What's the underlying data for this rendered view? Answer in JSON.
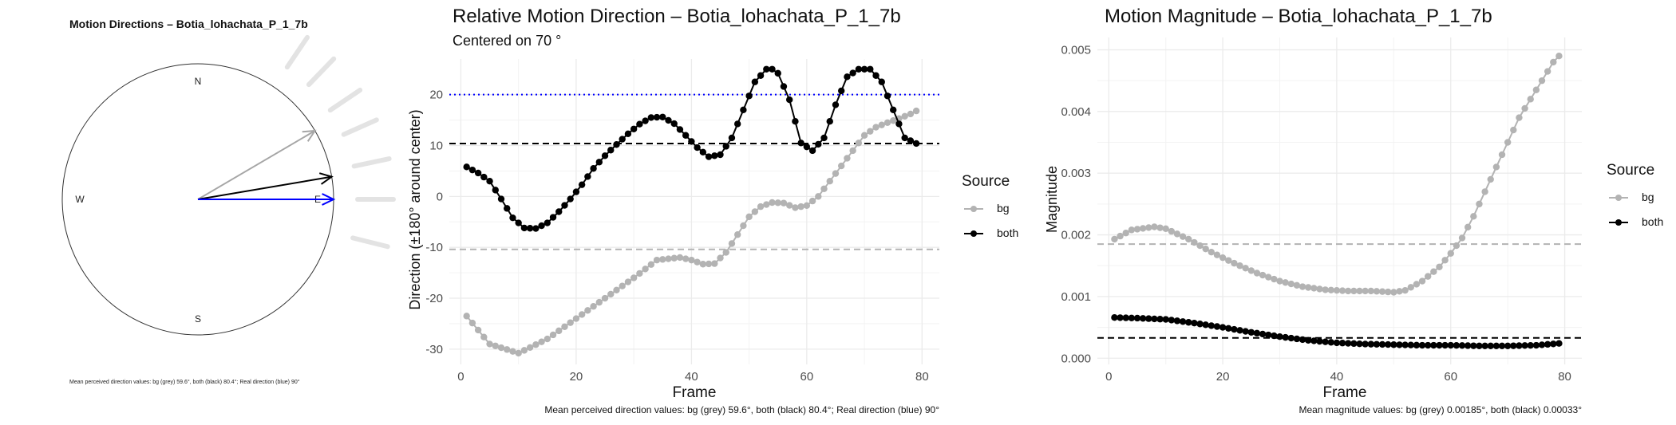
{
  "compass": {
    "title": "Motion Directions – Botia_lohachata_P_1_7b",
    "north": "N",
    "south": "S",
    "west": "W",
    "east": "E",
    "caption": "Mean perceived direction values: bg (grey) 59.6°, both (black) 80.4°; Real direction (blue) 90°",
    "arrows": [
      {
        "name": "bg",
        "angle_deg": 59.6,
        "color": "#a6a6a6"
      },
      {
        "name": "both",
        "angle_deg": 80.4,
        "color": "#000000"
      },
      {
        "name": "real",
        "angle_deg": 90,
        "color": "#0000ff"
      }
    ],
    "rays_deg": [
      34,
      44,
      56,
      66,
      78,
      90,
      104
    ]
  },
  "relative": {
    "title": "Relative Motion Direction – Botia_lohachata_P_1_7b",
    "subtitle": "Centered on  70 °",
    "xlabel": "Frame",
    "ylabel": "Direction (±180° around center)",
    "caption": "Mean perceived direction values: bg (grey) 59.6°, both (black) 80.4°; Real direction (blue) 90°",
    "legend_title": "Source",
    "legend_items": [
      "bg",
      "both"
    ]
  },
  "magnitude": {
    "title": "Motion Magnitude – Botia_lohachata_P_1_7b",
    "xlabel": "Frame",
    "ylabel": "Magnitude",
    "caption": "Mean magnitude values: bg (grey) 0.00185°, both (black) 0.00033°",
    "legend_title": "Source",
    "legend_items": [
      "bg",
      "both"
    ]
  },
  "colors": {
    "bg": "#b3b3b3",
    "both": "#000000",
    "real": "#0000ff",
    "grid": "#ebebeb"
  },
  "chart_data": [
    {
      "type": "line",
      "title": "Relative Motion Direction – Botia_lohachata_P_1_7b",
      "xlabel": "Frame",
      "ylabel": "Direction (±180° around center)",
      "xlim": [
        -2,
        83
      ],
      "ylim": [
        -33,
        27
      ],
      "xticks": [
        0,
        20,
        40,
        60,
        80
      ],
      "yticks": [
        -30,
        -20,
        -10,
        0,
        10,
        20
      ],
      "grid": true,
      "legend": "right",
      "hlines": [
        {
          "y": 20,
          "color": "#0000ff",
          "style": "dotted"
        },
        {
          "y": 10.4,
          "color": "#000000",
          "style": "dashed"
        },
        {
          "y": -10.4,
          "color": "#b3b3b3",
          "style": "dashed"
        }
      ],
      "series": [
        {
          "name": "bg",
          "x": [
            1,
            5,
            10,
            15,
            20,
            25,
            30,
            34,
            38,
            40,
            42,
            44,
            46,
            48,
            50,
            52,
            54,
            56,
            58,
            60,
            62,
            64,
            66,
            68,
            70,
            72,
            74,
            76,
            78,
            79
          ],
          "y": [
            -23.5,
            -29,
            -30.8,
            -28,
            -24,
            -20,
            -16,
            -12.5,
            -12,
            -12.5,
            -13.3,
            -13.2,
            -11,
            -7.5,
            -4,
            -2,
            -1.2,
            -1.3,
            -2.2,
            -1.8,
            0,
            3,
            6,
            9,
            12,
            13.6,
            14.5,
            15.3,
            16.2,
            16.8
          ]
        },
        {
          "name": "both",
          "x": [
            1,
            3,
            5,
            7,
            9,
            11,
            13,
            15,
            17,
            19,
            21,
            23,
            25,
            27,
            29,
            31,
            33,
            35,
            37,
            39,
            41,
            43,
            45,
            47,
            49,
            51,
            53,
            54,
            55,
            57,
            59,
            61,
            63,
            65,
            67,
            69,
            71,
            73,
            75,
            77,
            79
          ],
          "y": [
            5.8,
            4.6,
            3,
            -0.5,
            -4.2,
            -6.2,
            -6.3,
            -5.2,
            -3,
            -0.5,
            2.3,
            5.5,
            8,
            10.2,
            12.3,
            14.2,
            15.5,
            15.6,
            14.3,
            12,
            9.6,
            7.8,
            8.2,
            11.5,
            17,
            22.5,
            25,
            25,
            24.2,
            19,
            10.5,
            9,
            11.5,
            18,
            23.5,
            25,
            25,
            22.5,
            17,
            11.5,
            10.4
          ]
        }
      ]
    },
    {
      "type": "line",
      "title": "Motion Magnitude – Botia_lohachata_P_1_7b",
      "xlabel": "Frame",
      "ylabel": "Magnitude",
      "xlim": [
        -2,
        83
      ],
      "ylim": [
        -0.0001,
        0.0052
      ],
      "xticks": [
        0,
        20,
        40,
        60,
        80
      ],
      "yticks": [
        0.0,
        0.001,
        0.002,
        0.003,
        0.004,
        0.005
      ],
      "grid": true,
      "legend": "right",
      "hlines": [
        {
          "y": 0.00185,
          "color": "#b3b3b3",
          "style": "dashed"
        },
        {
          "y": 0.00033,
          "color": "#000000",
          "style": "dashed"
        }
      ],
      "series": [
        {
          "name": "bg",
          "x": [
            1,
            4,
            8,
            10,
            14,
            18,
            22,
            26,
            30,
            34,
            38,
            42,
            46,
            50,
            52,
            55,
            58,
            60,
            62,
            64,
            66,
            68,
            70,
            72,
            74,
            76,
            78,
            79
          ],
          "y": [
            0.00193,
            0.00208,
            0.00213,
            0.0021,
            0.00193,
            0.00172,
            0.00154,
            0.00138,
            0.00125,
            0.00116,
            0.00111,
            0.00109,
            0.00109,
            0.00107,
            0.0011,
            0.00125,
            0.00148,
            0.0017,
            0.00195,
            0.0023,
            0.0027,
            0.0031,
            0.0035,
            0.0039,
            0.0042,
            0.0045,
            0.0048,
            0.0049
          ]
        },
        {
          "name": "both",
          "x": [
            1,
            5,
            10,
            15,
            20,
            25,
            30,
            35,
            40,
            45,
            50,
            55,
            60,
            65,
            70,
            75,
            79
          ],
          "y": [
            0.00066,
            0.00065,
            0.00063,
            0.00057,
            0.0005,
            0.00042,
            0.00035,
            0.00029,
            0.00025,
            0.00023,
            0.00022,
            0.00021,
            0.00021,
            0.0002,
            0.0002,
            0.00021,
            0.00024
          ]
        }
      ]
    }
  ]
}
